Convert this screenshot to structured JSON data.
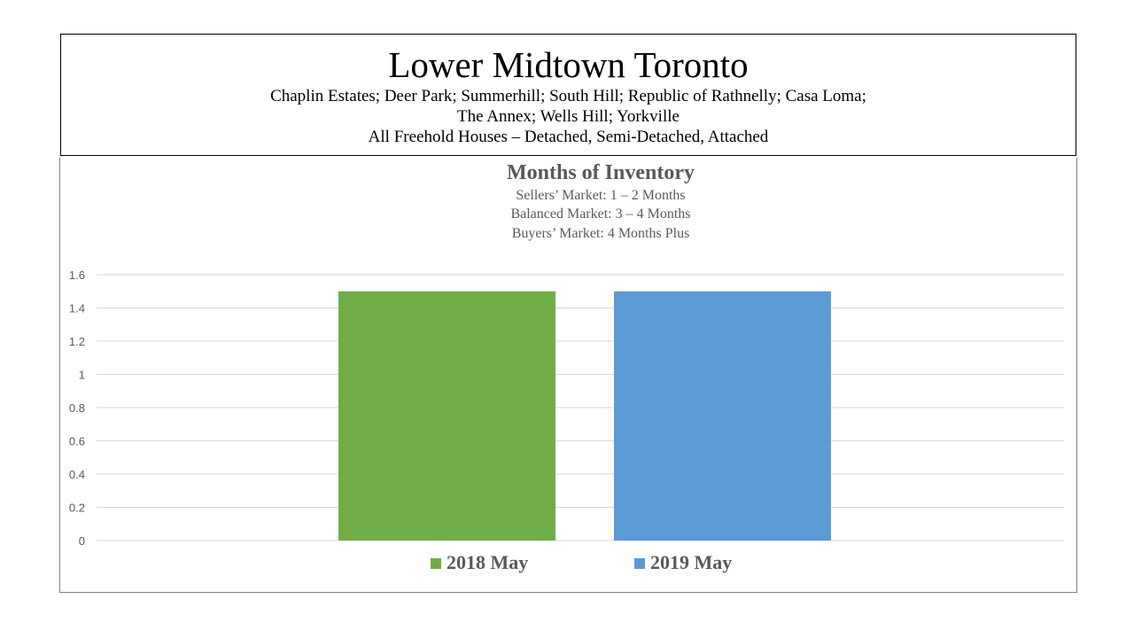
{
  "header": {
    "title": "Lower Midtown Toronto",
    "line1": "Chaplin Estates; Deer Park; Summerhill;  South Hill; Republic of Rathnelly;  Casa Loma;",
    "line2": "The Annex;  Wells Hill; Yorkville",
    "line3": "All Freehold Houses – Detached,  Semi-Detached,  Attached"
  },
  "chart_data": {
    "type": "bar",
    "title": "Months of Inventory",
    "subtitles": [
      "Sellers’ Market:   1 – 2 Months",
      "Balanced Market:   3 – 4 Months",
      "Buyers’ Market:   4 Months Plus"
    ],
    "xlabel": "",
    "ylabel": "",
    "ylim": [
      0,
      1.6
    ],
    "yticks": [
      "0",
      "0.2",
      "0.4",
      "0.6",
      "0.8",
      "1",
      "1.2",
      "1.4",
      "1.6"
    ],
    "grid": true,
    "legend_position": "bottom",
    "series": [
      {
        "name": "2018 May",
        "values": [
          1.5
        ],
        "color": "#70ad47"
      },
      {
        "name": "2019 May",
        "values": [
          1.5
        ],
        "color": "#5b9bd5"
      }
    ]
  }
}
